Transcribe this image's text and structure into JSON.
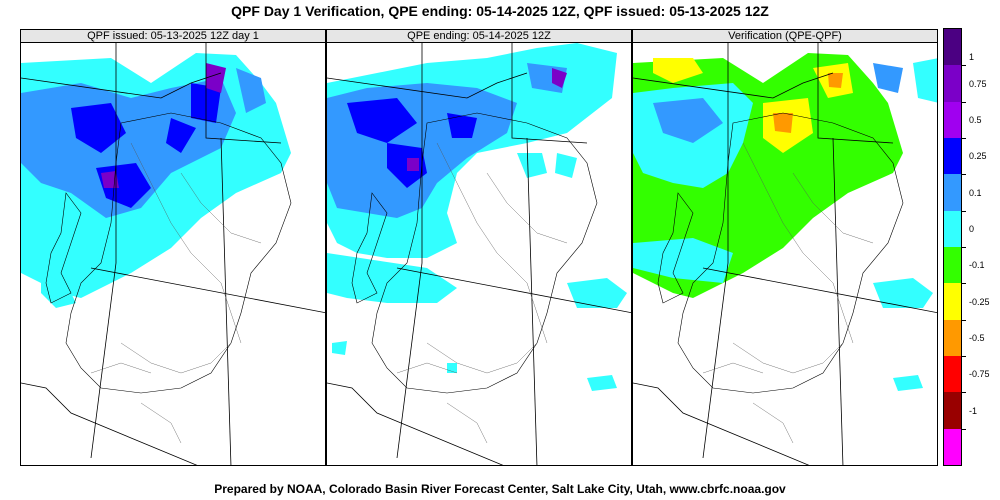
{
  "title": "QPF Day 1 Verification, QPE ending: 05-14-2025 12Z, QPF issued: 05-13-2025 12Z",
  "footer": "Prepared by NOAA, Colorado Basin River Forecast Center, Salt Lake City, Utah, www.cbrfc.noaa.gov",
  "panels": [
    {
      "title": "QPF issued: 05-13-2025 12Z day 1"
    },
    {
      "title": "QPE ending: 05-14-2025 12Z"
    },
    {
      "title": "Verification (QPE-QPF)"
    }
  ],
  "colorbar": {
    "colors": [
      "#4b0082",
      "#7b00c8",
      "#a000f0",
      "#0000ff",
      "#3399ff",
      "#33ffff",
      "#33ff00",
      "#ffff00",
      "#ff9900",
      "#ff0000",
      "#990000",
      "#ff00ff"
    ],
    "labels": [
      "1",
      "0.75",
      "0.5",
      "0.25",
      "0.1",
      "0",
      "-0.1",
      "-0.25",
      "-0.5",
      "-0.75",
      "-1"
    ]
  },
  "colors": {
    "qpf_light": "#33ffff",
    "qpf_mid": "#3399ff",
    "qpf_heavy": "#0000ff",
    "verif_zero": "#33ff00",
    "verif_neg": "#ffff00",
    "verif_neg2": "#ff9900"
  }
}
